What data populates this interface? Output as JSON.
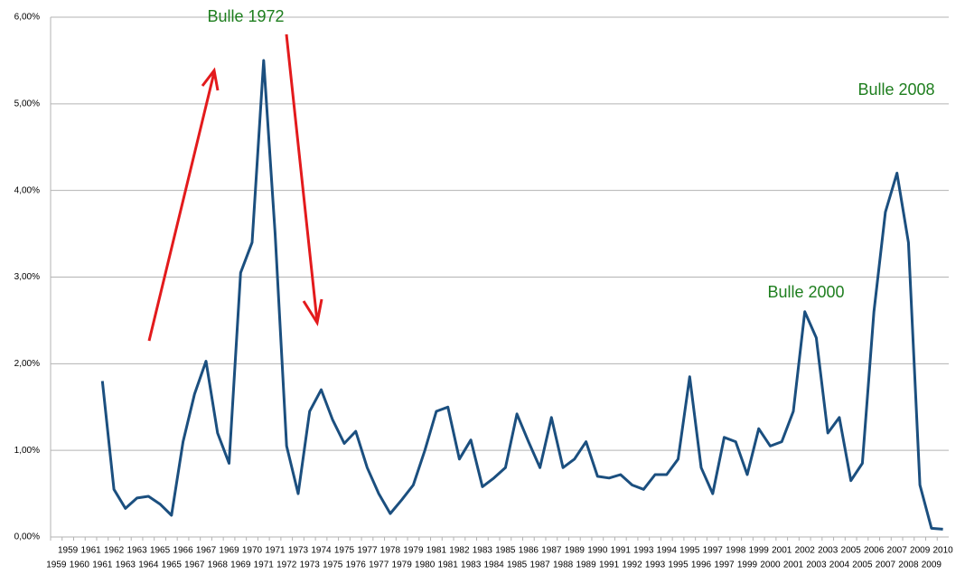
{
  "chart_data": {
    "type": "line",
    "categories": [
      "1959",
      "1959",
      "1960",
      "1961",
      "1961",
      "1962",
      "1963",
      "1963",
      "1964",
      "1965",
      "1965",
      "1966",
      "1967",
      "1967",
      "1968",
      "1969",
      "1969",
      "1970",
      "1971",
      "1971",
      "1972",
      "1973",
      "1973",
      "1974",
      "1975",
      "1975",
      "1976",
      "1977",
      "1977",
      "1978",
      "1979",
      "1979",
      "1980",
      "1981",
      "1981",
      "1982",
      "1983",
      "1983",
      "1984",
      "1985",
      "1985",
      "1986",
      "1987",
      "1987",
      "1988",
      "1989",
      "1989",
      "1990",
      "1991",
      "1991",
      "1992",
      "1993",
      "1993",
      "1994",
      "1995",
      "1995",
      "1996",
      "1997",
      "1997",
      "1998",
      "1999",
      "1999",
      "2000",
      "2001",
      "2001",
      "2002",
      "2003",
      "2003",
      "2004",
      "2005",
      "2005",
      "2006",
      "2007",
      "2007",
      "2008",
      "2009",
      "2009",
      "2010"
    ],
    "values": [
      null,
      null,
      null,
      null,
      1.8,
      0.55,
      0.33,
      0.45,
      0.47,
      0.38,
      0.25,
      1.1,
      1.65,
      2.03,
      1.2,
      0.85,
      3.05,
      3.4,
      5.5,
      3.5,
      1.05,
      0.5,
      1.45,
      1.7,
      1.35,
      1.08,
      1.22,
      0.8,
      0.5,
      0.27,
      0.43,
      0.6,
      1.0,
      1.45,
      1.5,
      0.9,
      1.12,
      0.58,
      0.68,
      0.8,
      1.42,
      1.1,
      0.8,
      1.38,
      0.8,
      0.9,
      1.1,
      0.7,
      0.68,
      0.72,
      0.6,
      0.55,
      0.72,
      0.72,
      0.9,
      1.85,
      0.8,
      0.5,
      1.15,
      1.1,
      0.72,
      1.25,
      1.05,
      1.1,
      1.45,
      2.6,
      2.3,
      1.2,
      1.38,
      0.65,
      0.85,
      2.6,
      3.75,
      4.2,
      3.4,
      0.6,
      0.1,
      0.09
    ],
    "color": "#1b4f7f",
    "ylim": [
      0,
      6
    ],
    "yticks": [
      {
        "value": 0,
        "label": "0,00%"
      },
      {
        "value": 1,
        "label": "1,00%"
      },
      {
        "value": 2,
        "label": "2,00%"
      },
      {
        "value": 3,
        "label": "3,00%"
      },
      {
        "value": 4,
        "label": "4,00%"
      },
      {
        "value": 5,
        "label": "5,00%"
      },
      {
        "value": 6,
        "label": "6,00%"
      }
    ],
    "grid": true,
    "annotations": [
      "Bulle 1972",
      "Bulle 2000",
      "Bulle 2008"
    ]
  }
}
